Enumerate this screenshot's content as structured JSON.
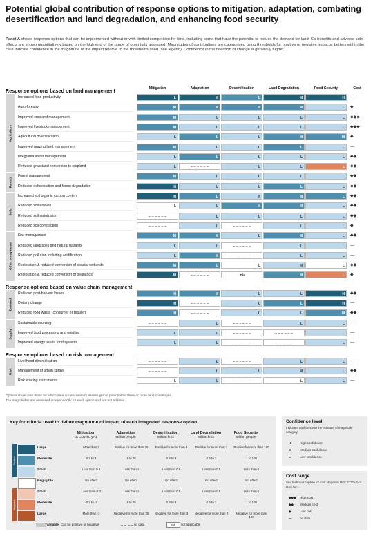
{
  "title": "Potential global contribution of response options to mitigation, adaptation, combating desertification and land degradation, and enhancing food security",
  "intro": {
    "panel_label": "Panel A",
    "text": "shows response options that can be implemented without or with limited competition for land, including some that have the potential to reduce the demand for land. Co-benefits and adverse side effects are shown quantitatively based on the high end of the range of potentials assessed. Magnitudes of contributions are categorised using thresholds for positive or negative impacts. Letters within the cells indicate confidence in the magnitude of the impact relative to the thresholds used (see legend). Confidence in the direction of change is generally higher."
  },
  "colors": {
    "large_pos": "#1f5f7a",
    "moderate_pos": "#4d8fae",
    "small_pos": "#bcd9ec",
    "negligible": "#ffffff",
    "small_neg": "#f2c6b0",
    "moderate_neg": "#e3845c",
    "large_neg": "#b5562b",
    "variable": "#c9c9c9",
    "group_bg": "#d6d6d6",
    "panel_bg": "#ececec"
  },
  "columns": [
    "Mitigation",
    "Adaptation",
    "Desertification",
    "Land Degradation",
    "Food Security",
    "Cost"
  ],
  "chart_data": {
    "type": "table",
    "level_scale": {
      "3": "Large positive",
      "2": "Moderate positive",
      "1": "Small positive",
      "0": "Negligible",
      "-1": "Small negative",
      "-2": "Moderate negative",
      "-3": "Large negative",
      "v": "Variable",
      "n": "No data"
    },
    "sections": [
      {
        "heading": "Response options based on land management",
        "groups": [
          {
            "name": "Agriculture",
            "rows": [
              {
                "label": "Increased food productivity",
                "values": [
                  3,
                  3,
                  2,
                  3,
                  3
                ],
                "conf": [
                  "L",
                  "M",
                  "L",
                  "M",
                  "H"
                ],
                "cost": "—"
              },
              {
                "label": "Agro-forestry",
                "values": [
                  2,
                  2,
                  2,
                  2,
                  1
                ],
                "conf": [
                  "M",
                  "M",
                  "M",
                  "M",
                  "L"
                ],
                "cost": "◆"
              },
              {
                "label": "Improved cropland management",
                "values": [
                  2,
                  1,
                  1,
                  1,
                  1
                ],
                "conf": [
                  "M",
                  "L",
                  "L",
                  "L",
                  "L"
                ],
                "cost": "◆◆◆"
              },
              {
                "label": "Improved livestock management",
                "values": [
                  2,
                  1,
                  1,
                  1,
                  1
                ],
                "conf": [
                  "M",
                  "L",
                  "L",
                  "L",
                  "L"
                ],
                "cost": "◆◆◆"
              },
              {
                "label": "Agricultural diversification",
                "values": [
                  1,
                  2,
                  1,
                  2,
                  2
                ],
                "conf": [
                  "L",
                  "L",
                  "L",
                  "M",
                  "M"
                ],
                "cost": "◆"
              },
              {
                "label": "Improved grazing land management",
                "values": [
                  2,
                  1,
                  1,
                  2,
                  1
                ],
                "conf": [
                  "M",
                  "L",
                  "L",
                  "L",
                  "L"
                ],
                "cost": "—"
              },
              {
                "label": "Integrated water management",
                "values": [
                  1,
                  2,
                  1,
                  1,
                  1
                ],
                "conf": [
                  "L",
                  "L",
                  "L",
                  "L",
                  "L"
                ],
                "cost": "◆◆"
              },
              {
                "label": "Reduced grassland conversion to cropland",
                "values": [
                  1,
                  "n",
                  1,
                  1,
                  -2
                ],
                "conf": [
                  "L",
                  "",
                  "L",
                  "L",
                  "L"
                ],
                "cost": "◆◆"
              }
            ]
          },
          {
            "name": "Forests",
            "rows": [
              {
                "label": "Forest management",
                "values": [
                  2,
                  1,
                  1,
                  1,
                  1
                ],
                "conf": [
                  "M",
                  "L",
                  "L",
                  "L",
                  "L"
                ],
                "cost": "◆◆"
              },
              {
                "label": "Reduced deforestation and forest degradation",
                "values": [
                  3,
                  1,
                  1,
                  2,
                  1
                ],
                "conf": [
                  "H",
                  "L",
                  "L",
                  "L",
                  "L"
                ],
                "cost": "◆◆"
              }
            ]
          },
          {
            "name": "Soils",
            "rows": [
              {
                "label": "Increased soil organic carbon content",
                "values": [
                  3,
                  2,
                  1,
                  2,
                  2
                ],
                "conf": [
                  "H",
                  "L",
                  "M",
                  "M",
                  "L"
                ],
                "cost": "◆◆"
              },
              {
                "label": "Reduced soil erosion",
                "values": [
                  0,
                  1,
                  2,
                  2,
                  1
                ],
                "conf": [
                  "L",
                  "L",
                  "M",
                  "M",
                  "L"
                ],
                "cost": "◆◆"
              },
              {
                "label": "Reduced soil salinization",
                "values": [
                  "n",
                  1,
                  1,
                  1,
                  1
                ],
                "conf": [
                  "",
                  "L",
                  "L",
                  "L",
                  "L"
                ],
                "cost": "◆◆"
              },
              {
                "label": "Reduced soil compaction",
                "values": [
                  "n",
                  1,
                  "n",
                  1,
                  1
                ],
                "conf": [
                  "",
                  "L",
                  "",
                  "L",
                  "L"
                ],
                "cost": "◆"
              }
            ]
          },
          {
            "name": "Other ecosystems",
            "rows": [
              {
                "label": "Fire management",
                "values": [
                  2,
                  2,
                  1,
                  2,
                  1
                ],
                "conf": [
                  "M",
                  "M",
                  "L",
                  "M",
                  "L"
                ],
                "cost": "◆◆"
              },
              {
                "label": "Reduced landslides and natural hazards",
                "values": [
                  1,
                  1,
                  "n",
                  1,
                  1
                ],
                "conf": [
                  "L",
                  "L",
                  "",
                  "L",
                  "L"
                ],
                "cost": "—"
              },
              {
                "label": "Reduced pollution including acidification",
                "values": [
                  1,
                  2,
                  "n",
                  1,
                  1
                ],
                "conf": [
                  "L",
                  "M",
                  "",
                  "L",
                  "L"
                ],
                "cost": "—"
              },
              {
                "label": "Restoration & reduced conversion of coastal wetlands",
                "values": [
                  2,
                  2,
                  0,
                  1,
                  0
                ],
                "conf": [
                  "M",
                  "L",
                  "L",
                  "M",
                  "L"
                ],
                "cost": "◆◆"
              },
              {
                "label": "Restoration & reduced conversion of peatlands",
                "values": [
                  3,
                  "n",
                  "na",
                  2,
                  -2
                ],
                "conf": [
                  "M",
                  "",
                  "",
                  "M",
                  "L"
                ],
                "cost": "◆"
              }
            ]
          }
        ]
      },
      {
        "heading": "Response options based on value chain management",
        "groups": [
          {
            "name": "Demand",
            "rows": [
              {
                "label": "Reduced post-harvest losses",
                "values": [
                  2,
                  2,
                  1,
                  1,
                  3
                ],
                "conf": [
                  "H",
                  "M",
                  "L",
                  "L",
                  "H"
                ],
                "cost": "◆◆"
              },
              {
                "label": "Dietary change",
                "values": [
                  3,
                  "n",
                  1,
                  2,
                  3
                ],
                "conf": [
                  "H",
                  "",
                  "L",
                  "L",
                  "H"
                ],
                "cost": "—"
              },
              {
                "label": "Reduced food waste (consumer or retailer)",
                "values": [
                  2,
                  "n",
                  1,
                  1,
                  2
                ],
                "conf": [
                  "H",
                  "",
                  "L",
                  "L",
                  "M"
                ],
                "cost": "◆◆"
              }
            ]
          },
          {
            "name": "Supply",
            "rows": [
              {
                "label": "Sustainable sourcing",
                "values": [
                  "n",
                  1,
                  "n",
                  1,
                  1
                ],
                "conf": [
                  "",
                  "L",
                  "",
                  "L",
                  "L"
                ],
                "cost": "—"
              },
              {
                "label": "Improved food processing and retailing",
                "values": [
                  1,
                  1,
                  "n",
                  "n",
                  1
                ],
                "conf": [
                  "L",
                  "L",
                  "",
                  "",
                  "L"
                ],
                "cost": "—"
              },
              {
                "label": "Improved energy use in food systems",
                "values": [
                  1,
                  1,
                  "n",
                  "n",
                  1
                ],
                "conf": [
                  "L",
                  "L",
                  "",
                  "",
                  "L"
                ],
                "cost": "—"
              }
            ]
          }
        ]
      },
      {
        "heading": "Response options based on risk management",
        "groups": [
          {
            "name": "Risk",
            "rows": [
              {
                "label": "Livelihood diversification",
                "values": [
                  "n",
                  1,
                  "n",
                  1,
                  1
                ],
                "conf": [
                  "",
                  "L",
                  "",
                  "L",
                  "L"
                ],
                "cost": "—"
              },
              {
                "label": "Management of urban sprawl",
                "values": [
                  "n",
                  1,
                  1,
                  1,
                  1
                ],
                "conf": [
                  "",
                  "L",
                  "L",
                  "M",
                  "L"
                ],
                "cost": "◆◆"
              },
              {
                "label": "Risk sharing instruments",
                "values": [
                  0,
                  1,
                  "n",
                  0,
                  1
                ],
                "conf": [
                  "L",
                  "L",
                  "",
                  "L",
                  "L"
                ],
                "cost": "—"
              }
            ]
          }
        ]
      }
    ]
  },
  "notes": [
    "Options shown are those for which data are available to assess global potential for three or more land challenges.",
    "The magnitudes are assessed independently for each option and are not additive."
  ],
  "key": {
    "title": "Key for criteria used to define magnitude of impact of each integrated response option",
    "headers": [
      {
        "name": "Mitigation",
        "unit": "Gt CO2-eq yr-1"
      },
      {
        "name": "Adaptation",
        "unit": "Million people"
      },
      {
        "name": "Desertification",
        "unit": "Million km2"
      },
      {
        "name": "Land Degradation",
        "unit": "Million km2"
      },
      {
        "name": "Food Security",
        "unit": "Million people"
      }
    ],
    "positive_label": "Positive",
    "negative_label": "Negative",
    "rows": [
      {
        "level": "Large",
        "cells": [
          "More than 3",
          "Positive for more than 25",
          "Positive for more than 3",
          "Positive for more than 3",
          "Positive for more than 100"
        ]
      },
      {
        "level": "Moderate",
        "cells": [
          "0.3 to 3",
          "1 to 25",
          "0.5 to 3",
          "0.5 to 3",
          "1 to 100"
        ]
      },
      {
        "level": "Small",
        "cells": [
          "Less than 0.3",
          "Less than 1",
          "Less than 0.5",
          "Less than 0.5",
          "Less than 1"
        ]
      },
      {
        "level": "Negligible",
        "cells": [
          "No effect",
          "No effect",
          "No effect",
          "No effect",
          "No effect"
        ]
      },
      {
        "level": "Small",
        "cells": [
          "Less than -0.3",
          "Less than 1",
          "Less than 0.5",
          "Less than 0.5",
          "Less than 1"
        ]
      },
      {
        "level": "Moderate",
        "cells": [
          "-0.3 to -3",
          "1 to 25",
          "0.5 to 3",
          "0.5 to 3",
          "1 to 100"
        ]
      },
      {
        "level": "Large",
        "cells": [
          "More than -3",
          "Negative for more than 25",
          "Negative for more than 3",
          "Negative for more than 3",
          "Negative for more than 100"
        ]
      }
    ],
    "variable_label": "Variable:",
    "variable_text": "Can be positive or negative",
    "no_data_text": "no data",
    "na_symbol": "n/a",
    "na_text": "not applicable"
  },
  "confidence": {
    "title": "Confidence level",
    "desc": "Indicates confidence in the estimate of magnitude category.",
    "items": [
      {
        "sym": "H",
        "text": "High confidence"
      },
      {
        "sym": "M",
        "text": "Medium confidence"
      },
      {
        "sym": "L",
        "text": "Low confidence"
      }
    ]
  },
  "cost": {
    "title": "Cost range",
    "desc": "See technical caption for cost ranges in US$ tCO2e-1 or US$ ha-1.",
    "items": [
      {
        "sym": "◆◆◆",
        "text": "High cost"
      },
      {
        "sym": "◆◆",
        "text": "Medium cost"
      },
      {
        "sym": "◆",
        "text": "Low cost"
      },
      {
        "sym": "—",
        "text": "no data"
      }
    ]
  }
}
